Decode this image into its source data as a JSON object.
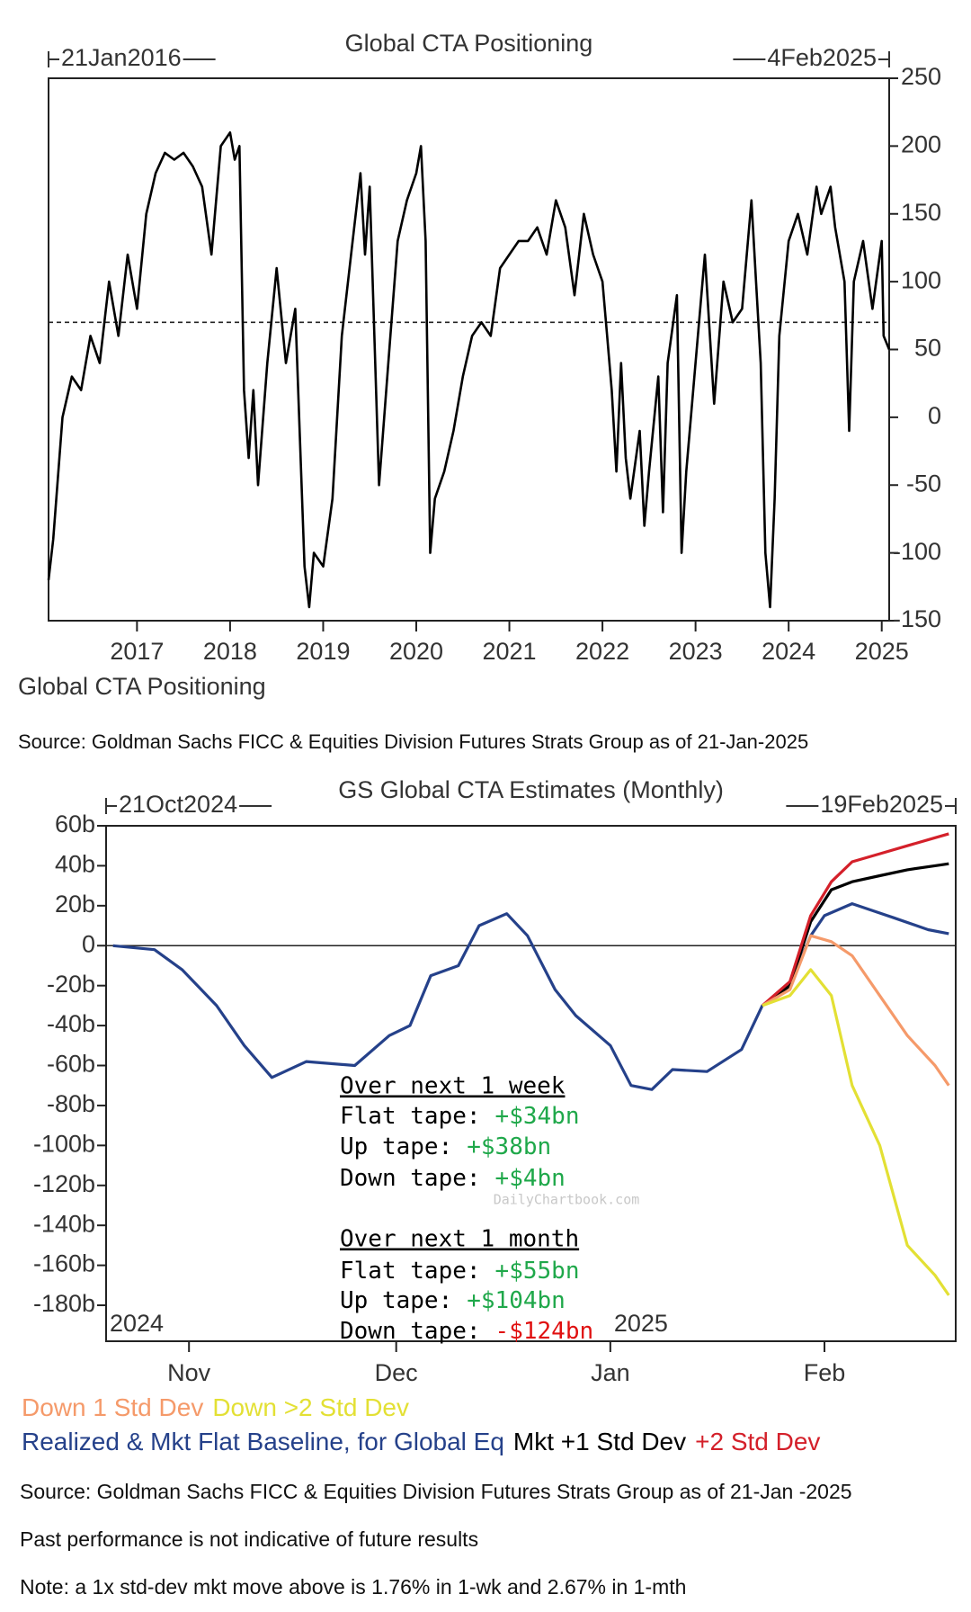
{
  "chart_data": [
    {
      "type": "line",
      "title": "Global CTA Positioning",
      "range_start": "21Jan2016",
      "range_end": "4Feb2025",
      "caption": "Global CTA Positioning",
      "source": "Source: Goldman Sachs FICC & Equities Division Futures Strats Group as of 21-Jan-2025",
      "color": "#000000",
      "y_axis_side": "right",
      "reference_line": 70,
      "reference_style": "dashed",
      "x": [
        2016.05,
        2016.1,
        2016.2,
        2016.3,
        2016.4,
        2016.5,
        2016.6,
        2016.7,
        2016.8,
        2016.9,
        2017.0,
        2017.1,
        2017.2,
        2017.3,
        2017.4,
        2017.5,
        2017.6,
        2017.7,
        2017.8,
        2017.9,
        2018.0,
        2018.05,
        2018.1,
        2018.15,
        2018.2,
        2018.25,
        2018.3,
        2018.4,
        2018.5,
        2018.6,
        2018.7,
        2018.8,
        2018.85,
        2018.9,
        2019.0,
        2019.1,
        2019.2,
        2019.3,
        2019.4,
        2019.45,
        2019.5,
        2019.6,
        2019.7,
        2019.8,
        2019.9,
        2020.0,
        2020.05,
        2020.1,
        2020.15,
        2020.2,
        2020.3,
        2020.4,
        2020.5,
        2020.6,
        2020.7,
        2020.8,
        2020.9,
        2021.0,
        2021.1,
        2021.2,
        2021.3,
        2021.4,
        2021.5,
        2021.6,
        2021.7,
        2021.8,
        2021.9,
        2022.0,
        2022.05,
        2022.1,
        2022.15,
        2022.2,
        2022.25,
        2022.3,
        2022.4,
        2022.45,
        2022.5,
        2022.6,
        2022.65,
        2022.7,
        2022.8,
        2022.85,
        2022.9,
        2023.0,
        2023.1,
        2023.2,
        2023.3,
        2023.4,
        2023.5,
        2023.6,
        2023.65,
        2023.7,
        2023.75,
        2023.8,
        2023.85,
        2023.9,
        2024.0,
        2024.1,
        2024.2,
        2024.3,
        2024.35,
        2024.45,
        2024.5,
        2024.6,
        2024.65,
        2024.7,
        2024.8,
        2024.9,
        2025.0,
        2025.02,
        2025.08
      ],
      "values": [
        -120,
        -90,
        0,
        30,
        20,
        60,
        40,
        100,
        60,
        120,
        80,
        150,
        180,
        195,
        190,
        195,
        185,
        170,
        120,
        200,
        210,
        190,
        200,
        20,
        -30,
        20,
        -50,
        40,
        110,
        40,
        80,
        -110,
        -140,
        -100,
        -110,
        -60,
        60,
        120,
        180,
        120,
        170,
        -50,
        40,
        130,
        160,
        180,
        200,
        130,
        -100,
        -60,
        -40,
        -10,
        30,
        60,
        70,
        60,
        110,
        120,
        130,
        130,
        140,
        120,
        160,
        140,
        90,
        150,
        120,
        100,
        60,
        20,
        -40,
        40,
        -30,
        -60,
        -10,
        -80,
        -40,
        30,
        -70,
        40,
        90,
        -100,
        -40,
        40,
        120,
        10,
        100,
        70,
        80,
        160,
        100,
        40,
        -100,
        -140,
        -60,
        60,
        130,
        150,
        120,
        170,
        150,
        170,
        140,
        100,
        -10,
        100,
        130,
        80,
        130,
        60,
        50
      ],
      "xlim": [
        2016.05,
        2025.08
      ],
      "xticks": [
        2017,
        2018,
        2019,
        2020,
        2021,
        2022,
        2023,
        2024,
        2025
      ],
      "ylim": [
        -150,
        250
      ],
      "yticks": [
        -150,
        -100,
        -50,
        0,
        50,
        100,
        150,
        200,
        250
      ]
    },
    {
      "type": "line",
      "title": "GS Global CTA Estimates (Monthly)",
      "range_start": "21Oct2024",
      "range_end": "19Feb2025",
      "y_axis_side": "left",
      "reference_line": 0,
      "reference_style": "solid",
      "year_labels": [
        {
          "value": "2024-10-20",
          "label": "2024"
        },
        {
          "value": "2025-01-01",
          "label": "2025"
        }
      ],
      "xlim": [
        "2024-10-20",
        "2025-02-20"
      ],
      "xticks": [
        {
          "value": "2024-11-01",
          "label": "Nov"
        },
        {
          "value": "2024-12-01",
          "label": "Dec"
        },
        {
          "value": "2025-01-01",
          "label": "Jan"
        },
        {
          "value": "2025-02-01",
          "label": "Feb"
        }
      ],
      "ylim": [
        -198,
        60
      ],
      "yticks": [
        {
          "value": 60,
          "label": "60b"
        },
        {
          "value": 40,
          "label": "40b"
        },
        {
          "value": 20,
          "label": "20b"
        },
        0,
        {
          "value": -20,
          "label": "-20b"
        },
        {
          "value": -40,
          "label": "-40b"
        },
        {
          "value": -60,
          "label": "-60b"
        },
        {
          "value": -80,
          "label": "-80b"
        },
        {
          "value": -100,
          "label": "-100b"
        },
        {
          "value": -120,
          "label": "-120b"
        },
        {
          "value": -140,
          "label": "-140b"
        },
        {
          "value": -160,
          "label": "-160b"
        },
        {
          "value": -180,
          "label": "-180b"
        }
      ],
      "series": [
        {
          "name": "Realized & Mkt Flat Baseline, for Global Eq",
          "color": "#25418a",
          "x": [
            "2024-10-21",
            "2024-10-27",
            "2024-10-31",
            "2024-11-05",
            "2024-11-09",
            "2024-11-13",
            "2024-11-18",
            "2024-11-25",
            "2024-11-30",
            "2024-12-03",
            "2024-12-06",
            "2024-12-10",
            "2024-12-13",
            "2024-12-17",
            "2024-12-20",
            "2024-12-24",
            "2024-12-27",
            "2025-01-01",
            "2025-01-04",
            "2025-01-07",
            "2025-01-10",
            "2025-01-15",
            "2025-01-20",
            "2025-01-23",
            "2025-01-27",
            "2025-01-30",
            "2025-02-01",
            "2025-02-05",
            "2025-02-11",
            "2025-02-16",
            "2025-02-19"
          ],
          "values": [
            0,
            -2,
            -12,
            -30,
            -50,
            -66,
            -58,
            -60,
            -45,
            -40,
            -15,
            -10,
            10,
            16,
            5,
            -22,
            -35,
            -50,
            -70,
            -72,
            -62,
            -63,
            -52,
            -30,
            -20,
            5,
            15,
            21,
            14,
            8,
            6
          ]
        },
        {
          "name": "Mkt +1 Std Dev",
          "color": "#000000",
          "x": [
            "2025-01-23",
            "2025-01-27",
            "2025-01-30",
            "2025-02-02",
            "2025-02-05",
            "2025-02-09",
            "2025-02-13",
            "2025-02-17",
            "2025-02-19"
          ],
          "values": [
            -30,
            -20,
            12,
            28,
            32,
            35,
            38,
            40,
            41
          ]
        },
        {
          "name": "+2 Std Dev",
          "color": "#d4202a",
          "x": [
            "2025-01-23",
            "2025-01-27",
            "2025-01-30",
            "2025-02-02",
            "2025-02-05",
            "2025-02-09",
            "2025-02-13",
            "2025-02-17",
            "2025-02-19"
          ],
          "values": [
            -30,
            -18,
            15,
            32,
            42,
            46,
            50,
            54,
            56
          ]
        },
        {
          "name": "Down 1 Std Dev",
          "color": "#f59a6a",
          "x": [
            "2025-01-23",
            "2025-01-27",
            "2025-01-30",
            "2025-02-02",
            "2025-02-05",
            "2025-02-09",
            "2025-02-13",
            "2025-02-17",
            "2025-02-19"
          ],
          "values": [
            -30,
            -22,
            5,
            2,
            -5,
            -25,
            -45,
            -60,
            -70
          ]
        },
        {
          "name": "Down >2 Std Dev",
          "color": "#e3e034",
          "x": [
            "2025-01-23",
            "2025-01-27",
            "2025-01-30",
            "2025-02-02",
            "2025-02-05",
            "2025-02-09",
            "2025-02-13",
            "2025-02-17",
            "2025-02-19"
          ],
          "values": [
            -30,
            -25,
            -12,
            -25,
            -70,
            -100,
            -150,
            -165,
            -175
          ]
        }
      ],
      "annotation": [
        {
          "heading": "Over next 1 week",
          "lines": [
            {
              "label": "Flat tape:",
              "value": "+$34bn"
            },
            {
              "label": "Up tape:",
              "value": "+$38bn"
            },
            {
              "label": "Down tape:",
              "value": "+$4bn"
            }
          ]
        },
        {
          "heading": "Over next 1 month",
          "lines": [
            {
              "label": "Flat tape:",
              "value": "+$55bn"
            },
            {
              "label": "Up tape:",
              "value": "+$104bn"
            },
            {
              "label": "Down tape:",
              "value": "-$124bn"
            }
          ]
        }
      ],
      "watermark": "DailyChartbook.com",
      "notes": [
        "Source: Goldman Sachs FICC & Equities Division Futures Strats Group as of 21-Jan -2025",
        "Past performance is not indicative of future results",
        "Note: a 1x std-dev mkt move above is 1.76% in 1-wk and 2.67% in 1-mth"
      ]
    }
  ]
}
